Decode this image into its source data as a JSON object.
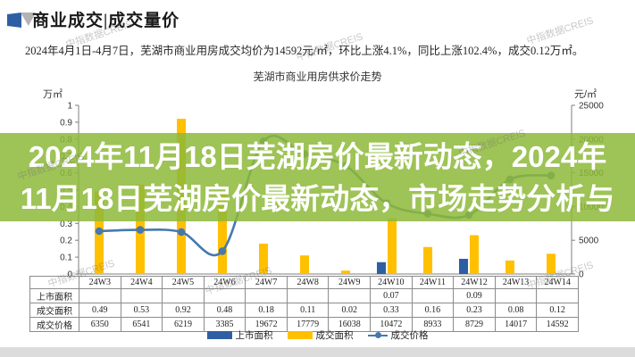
{
  "header": {
    "title": "商业成交|成交量价",
    "subtitle": "2024年4月1日-4月7日，芜湖市商业用房成交均价为14592元/㎡，环比上涨4.1%，同比上涨102.4%，成交0.12万㎡。"
  },
  "watermark": {
    "text": "中指数据CREIS"
  },
  "overlay": {
    "line1": "2024年11月18日芜湖房价最新动态，2024年",
    "line2": "11月18日芜湖房价最新动态，市场走势分析与",
    "background": "#8db838",
    "text_color": "#ffffff"
  },
  "chart_data": {
    "type": "bar",
    "title": "芜湖市商业用房供求价走势",
    "categories": [
      "24W3",
      "24W4",
      "24W5",
      "24W6",
      "24W7",
      "24W8",
      "24W9",
      "24W10",
      "24W11",
      "24W12",
      "24W13",
      "24W14"
    ],
    "series": [
      {
        "name": "上市面积",
        "type": "bar",
        "axis": "left",
        "color": "#2e5fa3",
        "values": [
          null,
          null,
          null,
          null,
          null,
          null,
          null,
          0.07,
          null,
          0.09,
          null,
          null
        ]
      },
      {
        "name": "成交面积",
        "type": "bar",
        "axis": "left",
        "color": "#ffc000",
        "values": [
          0.49,
          0.53,
          0.92,
          0.48,
          0.18,
          0.11,
          0.02,
          0.33,
          0.16,
          0.23,
          0.08,
          0.12
        ]
      },
      {
        "name": "成交价格",
        "type": "line",
        "axis": "right",
        "color": "#4678ae",
        "values": [
          6350,
          6541,
          6219,
          3385,
          19672,
          17779,
          16038,
          10472,
          8933,
          8729,
          14017,
          14592
        ]
      }
    ],
    "left_axis": {
      "unit": "万㎡",
      "min": 0,
      "max": 1,
      "step": 0.1
    },
    "right_axis": {
      "unit": "元/㎡",
      "min": 0,
      "max": 25000,
      "step": 5000
    },
    "grid": false,
    "legend_position": "bottom"
  }
}
